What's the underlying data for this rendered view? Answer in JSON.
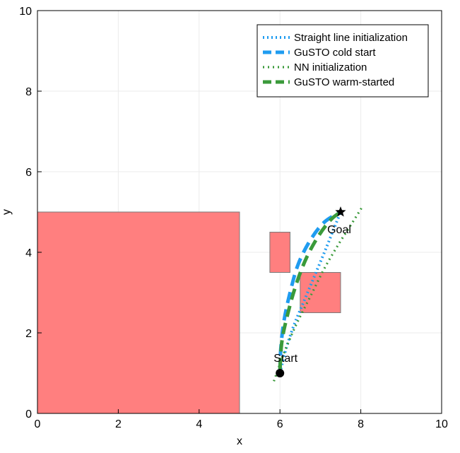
{
  "chart_data": {
    "type": "line",
    "title": "",
    "xlabel": "x",
    "ylabel": "y",
    "xlim": [
      0,
      10
    ],
    "ylim": [
      0,
      10
    ],
    "xticks": [
      0,
      2,
      4,
      6,
      8,
      10
    ],
    "yticks": [
      0,
      2,
      4,
      6,
      8,
      10
    ],
    "grid": true,
    "legend_position": "top-right",
    "obstacles": [
      {
        "x": [
          0,
          5
        ],
        "y": [
          0,
          5
        ],
        "color": "#ff7f7f"
      },
      {
        "x": [
          5.75,
          6.25
        ],
        "y": [
          3.5,
          4.5
        ],
        "color": "#ff7f7f"
      },
      {
        "x": [
          6.5,
          7.5
        ],
        "y": [
          2.5,
          3.5
        ],
        "color": "#ff7f7f"
      }
    ],
    "series": [
      {
        "name": "Straight line initialization",
        "color": "#1f9cf0",
        "style": "dotted-thick",
        "x": [
          6.0,
          6.15,
          6.35,
          6.6,
          6.85,
          7.1,
          7.3,
          7.5
        ],
        "y": [
          1.0,
          1.6,
          2.2,
          2.8,
          3.4,
          4.0,
          4.5,
          5.0
        ]
      },
      {
        "name": "GuSTO cold start",
        "color": "#1f9cf0",
        "style": "dashed-thick",
        "x": [
          6.0,
          6.02,
          6.1,
          6.25,
          6.45,
          6.75,
          7.1,
          7.5
        ],
        "y": [
          1.0,
          1.6,
          2.3,
          3.0,
          3.7,
          4.3,
          4.75,
          5.0
        ]
      },
      {
        "name": "NN initialization",
        "color": "#3a9a3a",
        "style": "dotted",
        "x": [
          5.85,
          6.1,
          6.4,
          6.75,
          7.1,
          7.45,
          7.8,
          8.05
        ],
        "y": [
          0.8,
          1.5,
          2.2,
          2.9,
          3.6,
          4.2,
          4.75,
          5.15
        ]
      },
      {
        "name": "GuSTO warm-started",
        "color": "#3a9a3a",
        "style": "dashed-thick",
        "x": [
          6.0,
          6.05,
          6.2,
          6.4,
          6.65,
          6.95,
          7.25,
          7.5
        ],
        "y": [
          1.1,
          1.8,
          2.5,
          3.2,
          3.85,
          4.4,
          4.8,
          5.0
        ]
      }
    ],
    "markers": [
      {
        "label": "Start",
        "x": 6.0,
        "y": 1.0,
        "shape": "circle"
      },
      {
        "label": "Goal",
        "x": 7.5,
        "y": 5.0,
        "shape": "star"
      }
    ]
  }
}
